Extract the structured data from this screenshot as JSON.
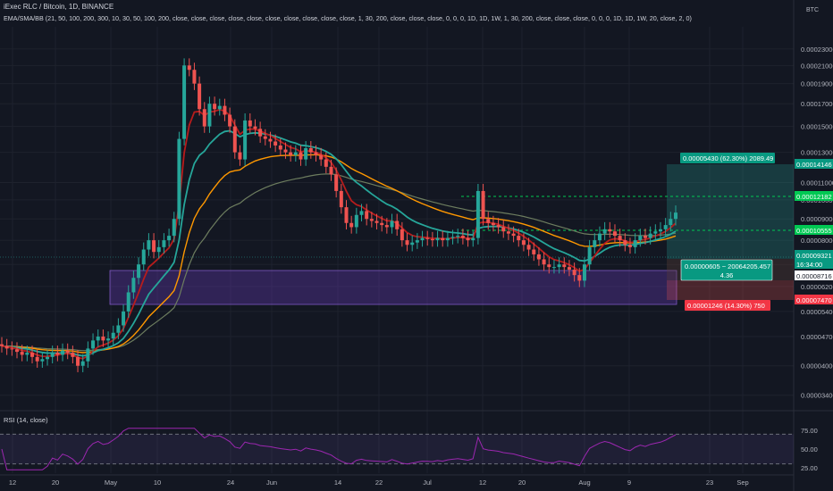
{
  "header": {
    "title": "iExec RLC / Bitcoin, 1D, BINANCE",
    "indicators": "EMA/SMA/BB (21, 50, 100, 200, 300, 10, 30, 50, 100, 200, close, close, close, close, close, close, close, close, close, close, 1, 30, 200, close, close, close, 0, 0, 0, 1D, 1D, 1W, 1, 30, 200, close, close, close, 0, 0, 0, 1D, 1D, 1W, 20, close, 2, 0)",
    "rsi_label": "RSI (14, close)",
    "currency": "BTC"
  },
  "price_axis": {
    "ticks": [
      "0.00023000",
      "0.00021000",
      "0.00019000",
      "0.00017000",
      "0.00015000",
      "0.00013000",
      "0.00011000",
      "0.00010000",
      "0.00009000",
      "0.00008000",
      "0.00007000",
      "0.00006200",
      "0.00005400",
      "0.00004700",
      "0.00004000",
      "0.00003400"
    ]
  },
  "rsi_axis": {
    "ticks": [
      "75.00",
      "50.00",
      "25.00"
    ]
  },
  "time_axis": {
    "ticks": [
      "12",
      "20",
      "May",
      "10",
      "24",
      "Jun",
      "14",
      "22",
      "Jul",
      "12",
      "20",
      "Aug",
      "9",
      "23",
      "Sep"
    ]
  },
  "price_tags": [
    {
      "label": "0.00014146",
      "color": "#089981"
    },
    {
      "label": "0.00012182",
      "color": "#00c853"
    },
    {
      "label": "0.00010555",
      "color": "#00c853"
    },
    {
      "label": "0.00009321",
      "color": "#089981"
    },
    {
      "label": "16:34:00",
      "color": "#089981"
    },
    {
      "label": "0.00008716",
      "color": "#ffffff"
    },
    {
      "label": "0.00007470",
      "color": "#f23645"
    }
  ],
  "position": {
    "target_label": "0.00005430 (62.30%) 2089.49",
    "center_label_1": "0.00000605 ~ 20064205.457",
    "center_label_2": "4.36",
    "stop_label": "0.00001246 (14.30%) 750"
  },
  "colors": {
    "background": "#131722",
    "up": "#26a69a",
    "down": "#ef5350",
    "ema_red": "#b71c1c",
    "ema_teal": "#26a69a",
    "ema_orange": "#ff9800",
    "sma_gray": "#6d7d5f",
    "rsi_line": "#9c27b0",
    "zone": "#673ab7"
  },
  "chart_data": {
    "type": "candlestick",
    "title": "iExec RLC / Bitcoin, 1D, BINANCE",
    "x_start": "Apr 10",
    "x_end": "Aug 17",
    "y_unit": "BTC",
    "y_scale": "log",
    "ylim": [
      3.2e-05,
      0.00026
    ],
    "series_approx_close": [
      4.46e-05,
      4.4e-05,
      4.38e-05,
      4.32e-05,
      4.25e-05,
      4.3e-05,
      4.2e-05,
      4.1e-05,
      4.15e-05,
      4.2e-05,
      4.3e-05,
      4.25e-05,
      4.35e-05,
      4.3e-05,
      4.2e-05,
      4e-05,
      4.1e-05,
      4.4e-05,
      4.6e-05,
      4.7e-05,
      4.6e-05,
      4.65e-05,
      4.8e-05,
      5e-05,
      5.4e-05,
      6e-05,
      6.5e-05,
      7e-05,
      7.6e-05,
      8e-05,
      7.5e-05,
      7.7e-05,
      8e-05,
      8.2e-05,
      9e-05,
      0.00014,
      0.00021,
      0.000205,
      0.00019,
      0.000165,
      0.00015,
      0.00017,
      0.000165,
      0.000168,
      0.00016,
      0.00015,
      0.00013,
      0.000125,
      0.000155,
      0.00015,
      0.000148,
      0.000142,
      0.00014,
      0.000138,
      0.000135,
      0.000132,
      0.00013,
      0.000128,
      0.00013,
      0.000125,
      0.000133,
      0.00013,
      0.000128,
      0.000125,
      0.00012,
      0.000115,
      0.000105,
      9.6e-05,
      8.8e-05,
      8.6e-05,
      9.2e-05,
      9.4e-05,
      9e-05,
      8.9e-05,
      8.8e-05,
      8.7e-05,
      8.6e-05,
      8.9e-05,
      8.5e-05,
      8e-05,
      7.8e-05,
      7.9e-05,
      8e-05,
      8.1e-05,
      8.05e-05,
      8e-05,
      8.1e-05,
      8e-05,
      8.1e-05,
      8.15e-05,
      8.2e-05,
      8.1e-05,
      8e-05,
      8.1e-05,
      0.000105,
      9e-05,
      8.8e-05,
      8.7e-05,
      8.6e-05,
      8.4e-05,
      8.3e-05,
      8.2e-05,
      8e-05,
      7.8e-05,
      7.6e-05,
      7.4e-05,
      7.2e-05,
      7e-05,
      6.9e-05,
      6.9e-05,
      7e-05,
      6.9e-05,
      6.8e-05,
      6.6e-05,
      6.4e-05,
      7e-05,
      7.7e-05,
      8e-05,
      8.3e-05,
      8.5e-05,
      8.4e-05,
      8.2e-05,
      8e-05,
      7.8e-05,
      7.7e-05,
      8e-05,
      8.2e-05,
      8.1e-05,
      8.3e-05,
      8.4e-05,
      8.5e-05,
      8.7e-05,
      9e-05,
      9.32e-05
    ],
    "last_price": 9.321e-05,
    "rsi": {
      "period": 14,
      "upper": 70,
      "lower": 30
    }
  }
}
